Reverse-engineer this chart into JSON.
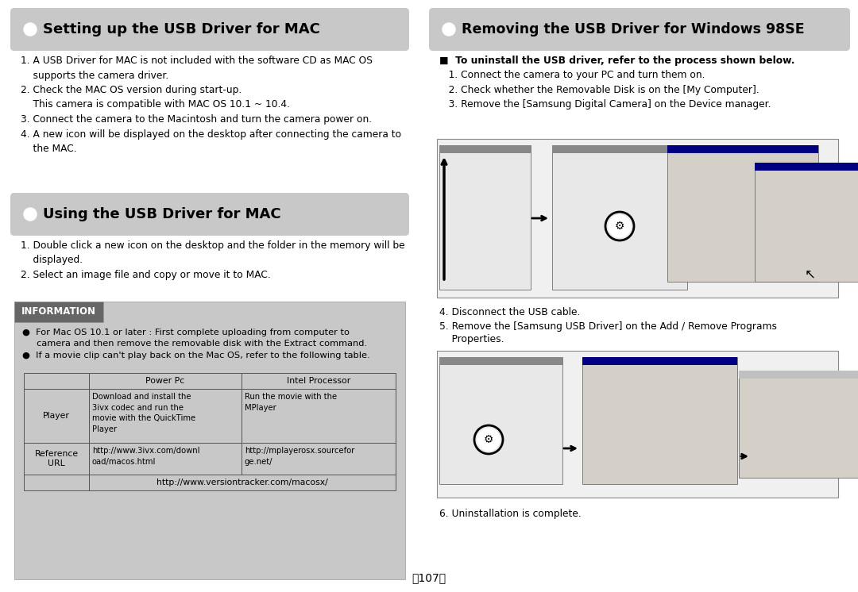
{
  "bg_color": "#ffffff",
  "title1": "Setting up the USB Driver for MAC",
  "title2": "Using the USB Driver for MAC",
  "title3": "Removing the USB Driver for Windows 98SE",
  "title_bg": "#c8c8c8",
  "section1_line1": "1. A USB Driver for MAC is not included with the software CD as MAC OS",
  "section1_line2": "    supports the camera driver.",
  "section1_line3": "2. Check the MAC OS version during start-up.",
  "section1_line4": "    This camera is compatible with MAC OS 10.1 ~ 10.4.",
  "section1_line5": "3. Connect the camera to the Macintosh and turn the camera power on.",
  "section1_line6": "4. A new icon will be displayed on the desktop after connecting the camera to",
  "section1_line7": "    the MAC.",
  "section2_line1": "1. Double click a new icon on the desktop and the folder in the memory will be",
  "section2_line2": "    displayed.",
  "section2_line3": "2. Select an image file and copy or move it to MAC.",
  "info_bg": "#c8c8c8",
  "info_title": "INFORMATION",
  "info_title_bg": "#666666",
  "info_bullet1_line1": "●  For Mac OS 10.1 or later : First complete uploading from computer to",
  "info_bullet1_line2": "     camera and then remove the removable disk with the Extract command.",
  "info_bullet2": "●  If a movie clip can't play back on the Mac OS, refer to the following table.",
  "table_header_col1": "Power Pc",
  "table_header_col2": "Intel Processor",
  "table_r1_c0": "Player",
  "table_r1_c1": "Download and install the\n3ivx codec and run the\nmovie with the QuickTime\nPlayer",
  "table_r1_c2": "Run the movie with the\nMPlayer",
  "table_r2_c0": "Reference\nURL",
  "table_r2_c1": "http://www.3ivx.com/downl\noad/macos.html",
  "table_r2_c2": "http://mplayerosx.sourcefor\nge.net/",
  "table_r3_span": "http://www.versiontracker.com/macosx/",
  "right_bullet": "■  To uninstall the USB driver, refer to the process shown below.",
  "right_s1": "   1. Connect the camera to your PC and turn them on.",
  "right_s2": "   2. Check whether the Removable Disk is on the [My Computer].",
  "right_s3": "   3. Remove the [Samsung Digital Camera] on the Device manager.",
  "right_s4": "4. Disconnect the USB cable.",
  "right_s5a": "5. Remove the [Samsung USB Driver] on the Add / Remove Programs",
  "right_s5b": "    Properties.",
  "right_s6": "6. Uninstallation is complete.",
  "page_num": "《107》"
}
